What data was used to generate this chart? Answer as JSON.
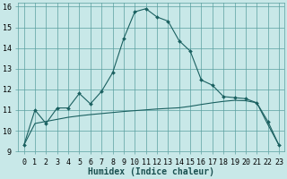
{
  "xlabel": "Humidex (Indice chaleur)",
  "background_color": "#c8e8e8",
  "grid_color": "#5aa0a0",
  "line_color": "#1a6060",
  "xlim": [
    -0.5,
    23.5
  ],
  "ylim": [
    9,
    16.2
  ],
  "x_line1": [
    0,
    1,
    2,
    3,
    4,
    5,
    6,
    7,
    8,
    9,
    10,
    11,
    12,
    13,
    14,
    15,
    16,
    17,
    18,
    19,
    20,
    21,
    22,
    23
  ],
  "y_line1": [
    9.3,
    11.0,
    10.35,
    11.1,
    11.1,
    11.8,
    11.3,
    11.9,
    12.8,
    14.45,
    15.75,
    15.9,
    15.5,
    15.3,
    14.35,
    13.85,
    12.45,
    12.2,
    11.65,
    11.6,
    11.55,
    11.35,
    10.45,
    9.3
  ],
  "x_line2": [
    0,
    1,
    2,
    3,
    4,
    5,
    6,
    7,
    8,
    9,
    10,
    11,
    12,
    13,
    14,
    15,
    16,
    17,
    18,
    19,
    20,
    21,
    22,
    23
  ],
  "y_line2": [
    9.3,
    10.35,
    10.45,
    10.55,
    10.65,
    10.72,
    10.78,
    10.83,
    10.88,
    10.93,
    10.97,
    11.01,
    11.05,
    11.08,
    11.11,
    11.18,
    11.27,
    11.35,
    11.42,
    11.47,
    11.45,
    11.35,
    10.3,
    9.3
  ],
  "xtick_labels": [
    "0",
    "1",
    "2",
    "3",
    "4",
    "5",
    "6",
    "7",
    "8",
    "9",
    "10",
    "11",
    "12",
    "13",
    "14",
    "15",
    "16",
    "17",
    "18",
    "19",
    "20",
    "21",
    "22",
    "23"
  ],
  "ytick_values": [
    9,
    10,
    11,
    12,
    13,
    14,
    15,
    16
  ],
  "tick_fontsize": 6,
  "label_fontsize": 7
}
